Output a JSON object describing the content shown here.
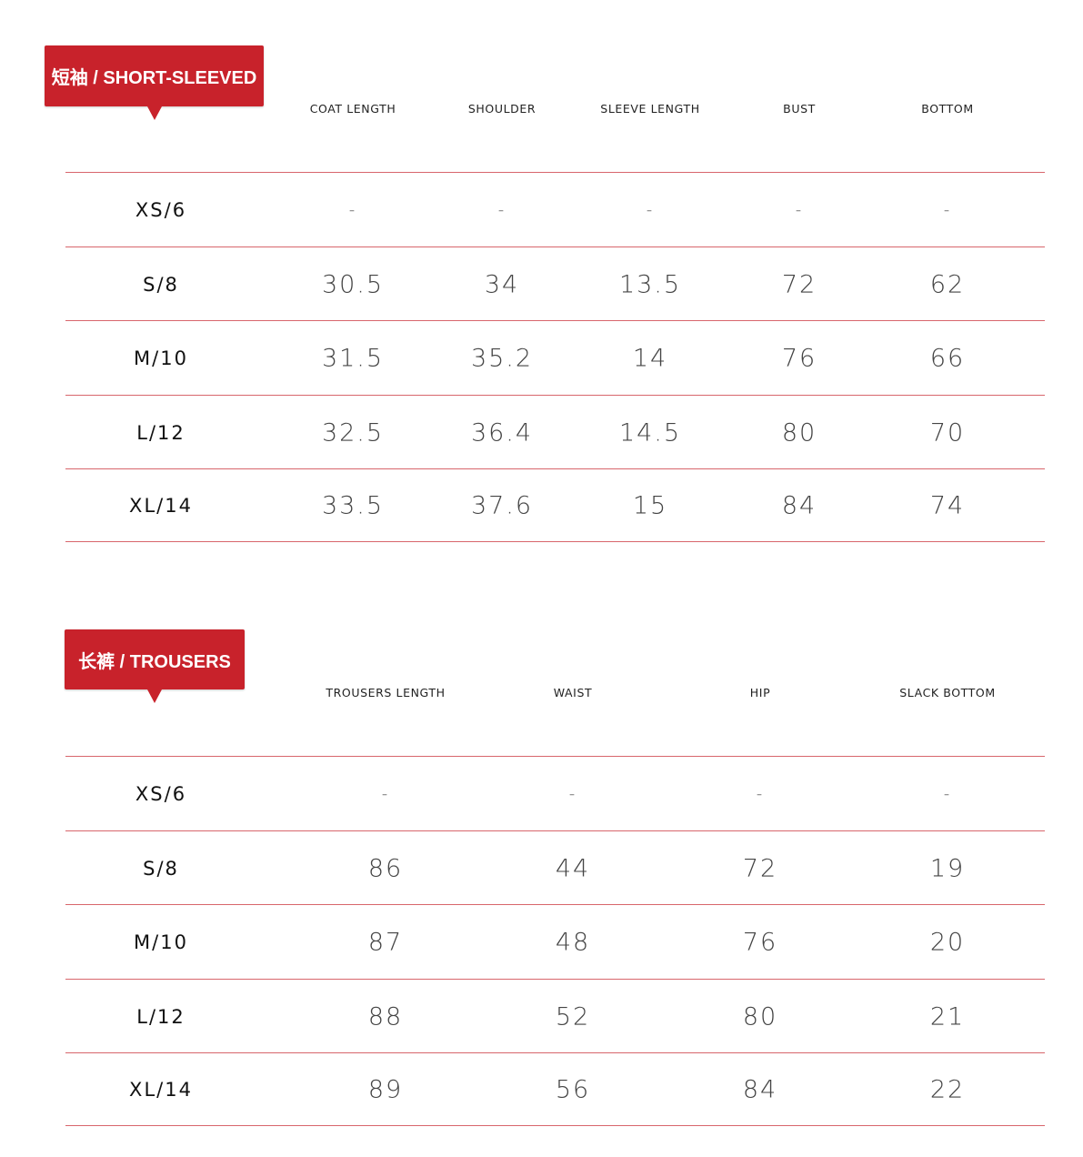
{
  "tables": [
    {
      "title": "短袖 / SHORT-SLEEVED",
      "headers": [
        "COAT LENGTH",
        "SHOULDER",
        "SLEEVE LENGTH",
        "BUST",
        "BOTTOM"
      ],
      "rows": [
        {
          "size": "XS/6",
          "values": [
            "-",
            "-",
            "-",
            "-",
            "-"
          ]
        },
        {
          "size": "S/8",
          "values": [
            "30.5",
            "34",
            "13.5",
            "72",
            "62"
          ]
        },
        {
          "size": "M/10",
          "values": [
            "31.5",
            "35.2",
            "14",
            "76",
            "66"
          ]
        },
        {
          "size": "L/12",
          "values": [
            "32.5",
            "36.4",
            "14.5",
            "80",
            "70"
          ]
        },
        {
          "size": "XL/14",
          "values": [
            "33.5",
            "37.6",
            "15",
            "84",
            "74"
          ]
        }
      ]
    },
    {
      "title": "长裤 / TROUSERS",
      "headers": [
        "TROUSERS LENGTH",
        "WAIST",
        "HIP",
        "SLACK BOTTOM"
      ],
      "rows": [
        {
          "size": "XS/6",
          "values": [
            "-",
            "-",
            "-",
            "-"
          ]
        },
        {
          "size": "S/8",
          "values": [
            "86",
            "44",
            "72",
            "19"
          ]
        },
        {
          "size": "M/10",
          "values": [
            "87",
            "48",
            "76",
            "20"
          ]
        },
        {
          "size": "L/12",
          "values": [
            "88",
            "52",
            "80",
            "21"
          ]
        },
        {
          "size": "XL/14",
          "values": [
            "89",
            "56",
            "84",
            "22"
          ]
        }
      ]
    }
  ],
  "colors": {
    "accent": "#c8222b",
    "rule": "#d8666c"
  }
}
